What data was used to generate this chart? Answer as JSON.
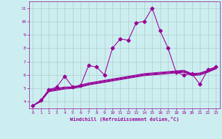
{
  "xlabel": "Windchill (Refroidissement éolien,°C)",
  "x": [
    0,
    1,
    2,
    3,
    4,
    5,
    6,
    7,
    8,
    9,
    10,
    11,
    12,
    13,
    14,
    15,
    16,
    17,
    18,
    19,
    20,
    21,
    22,
    23
  ],
  "line1": [
    3.7,
    4.1,
    4.9,
    5.1,
    5.9,
    5.1,
    5.2,
    6.7,
    6.6,
    6.0,
    8.0,
    8.7,
    8.6,
    9.9,
    10.0,
    11.0,
    9.3,
    8.0,
    6.2,
    6.0,
    6.1,
    5.3,
    6.4,
    6.6
  ],
  "line2": [
    3.7,
    4.1,
    4.9,
    5.0,
    5.1,
    5.1,
    5.25,
    5.4,
    5.5,
    5.6,
    5.7,
    5.8,
    5.9,
    6.0,
    6.1,
    6.15,
    6.2,
    6.25,
    6.3,
    6.35,
    6.1,
    6.15,
    6.35,
    6.6
  ],
  "line3": [
    3.7,
    4.1,
    4.85,
    4.95,
    5.05,
    5.1,
    5.2,
    5.35,
    5.45,
    5.55,
    5.65,
    5.75,
    5.85,
    5.95,
    6.05,
    6.1,
    6.15,
    6.2,
    6.25,
    6.3,
    6.05,
    6.1,
    6.3,
    6.55
  ],
  "line4": [
    3.7,
    4.05,
    4.8,
    4.9,
    5.0,
    5.05,
    5.15,
    5.3,
    5.4,
    5.5,
    5.6,
    5.7,
    5.8,
    5.9,
    6.0,
    6.05,
    6.1,
    6.15,
    6.2,
    6.25,
    6.0,
    6.05,
    6.25,
    6.5
  ],
  "line5": [
    3.7,
    4.0,
    4.75,
    4.85,
    4.95,
    5.0,
    5.1,
    5.25,
    5.35,
    5.45,
    5.55,
    5.65,
    5.75,
    5.85,
    5.95,
    6.0,
    6.05,
    6.1,
    6.15,
    6.2,
    5.95,
    6.0,
    6.2,
    6.45
  ],
  "line_color": "#990099",
  "bg_color": "#cceef0",
  "grid_color": "#aacccc",
  "ylim": [
    3.5,
    11.5
  ],
  "yticks": [
    4,
    5,
    6,
    7,
    8,
    9,
    10,
    11
  ],
  "xlim": [
    -0.5,
    23.5
  ],
  "xticks": [
    0,
    1,
    2,
    3,
    4,
    5,
    6,
    7,
    8,
    9,
    10,
    11,
    12,
    13,
    14,
    15,
    16,
    17,
    18,
    19,
    20,
    21,
    22,
    23
  ],
  "marker": "D",
  "markersize": 2.5,
  "linewidth": 0.8
}
